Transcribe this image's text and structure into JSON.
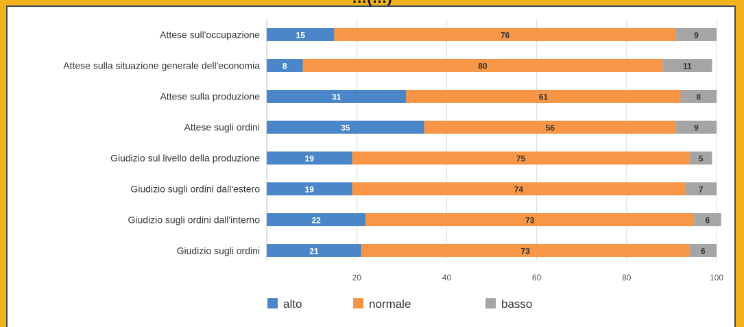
{
  "chart_data": {
    "type": "bar",
    "orientation": "horizontal",
    "stacked": true,
    "title": "…(…)",
    "categories": [
      "Attese sull'occupazione",
      "Attese sulla situazione generale dell'economia",
      "Attese sulla produzione",
      "Attese sugli ordini",
      "Giudizio sul livello della produzione",
      "Giudizio sugli ordini dall'estero",
      "Giudizio sugli ordini dall'interno",
      "Giudizio sugli ordini"
    ],
    "series": [
      {
        "name": "alto",
        "color": "#4a86c8",
        "values": [
          15,
          8,
          31,
          35,
          19,
          19,
          22,
          21
        ]
      },
      {
        "name": "normale",
        "color": "#f79646",
        "values": [
          76,
          80,
          61,
          56,
          75,
          74,
          73,
          73
        ]
      },
      {
        "name": "basso",
        "color": "#a5a5a5",
        "values": [
          9,
          11,
          8,
          9,
          5,
          7,
          6,
          6
        ]
      }
    ],
    "xlim": [
      0,
      100
    ],
    "xticks": [
      20,
      40,
      60,
      80,
      100
    ],
    "grid": true,
    "legend": "bottom"
  }
}
